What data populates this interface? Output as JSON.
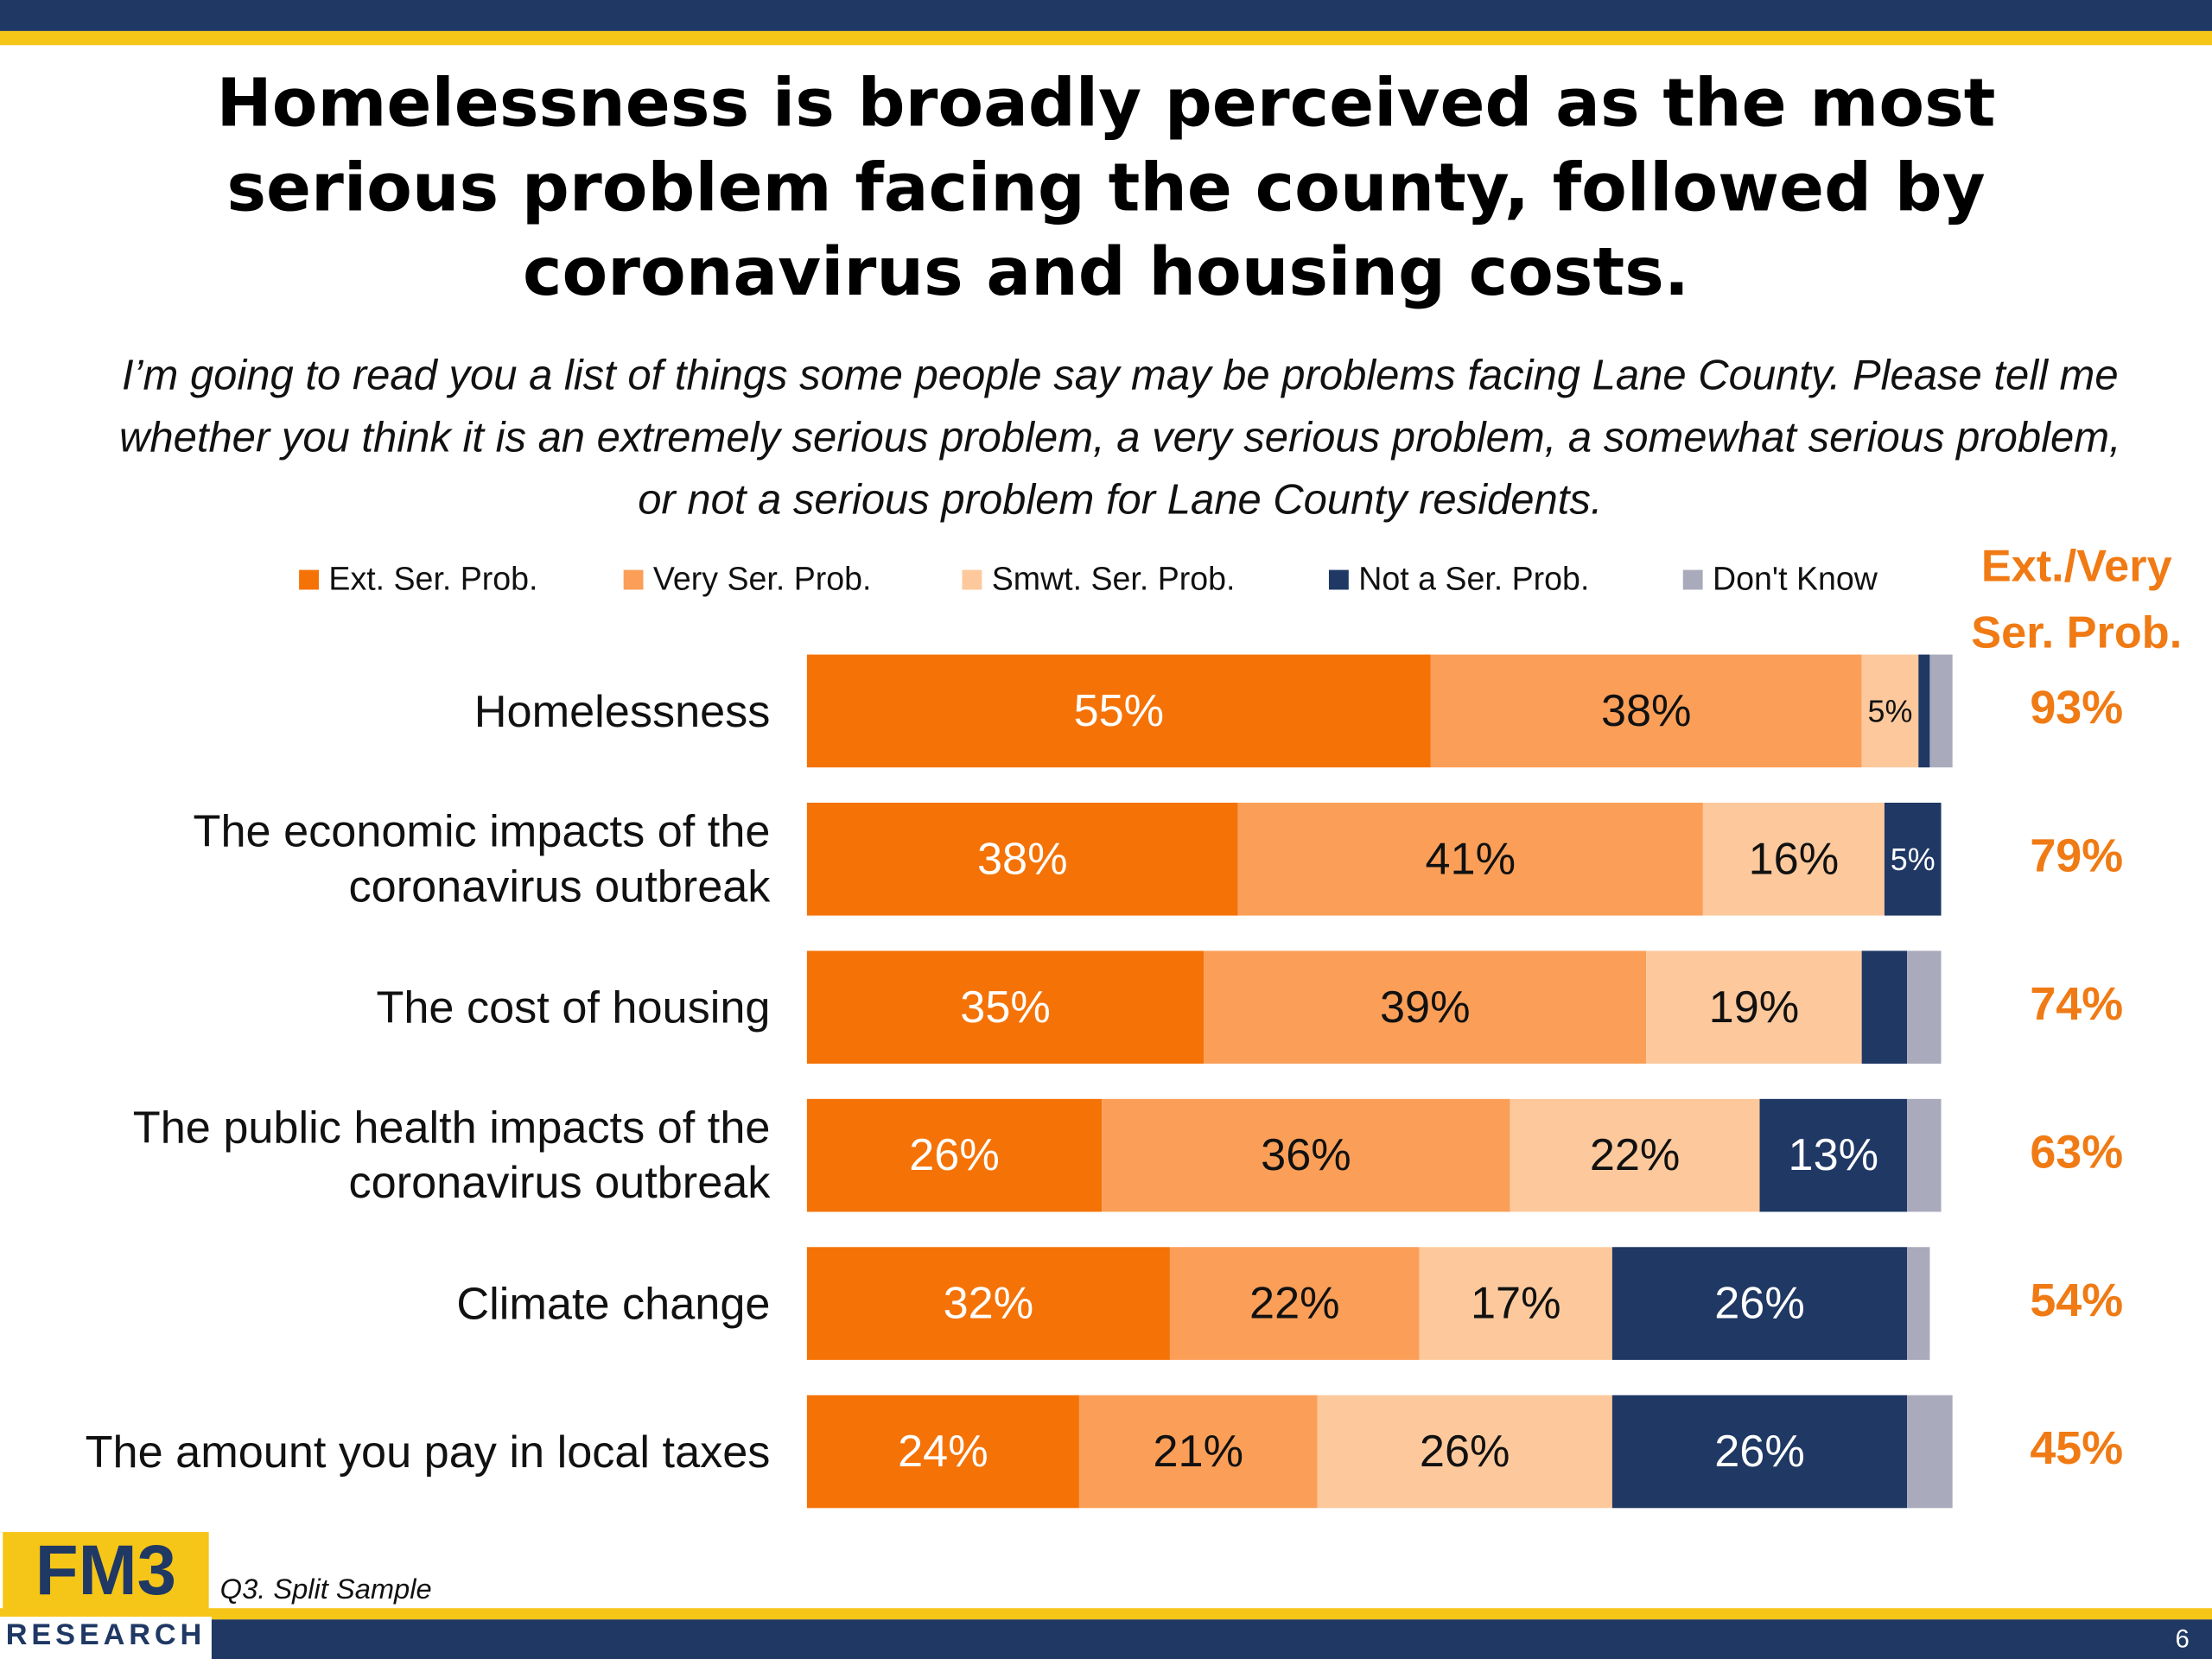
{
  "chart_data": {
    "type": "stacked-bar",
    "title": "Homelessness is broadly perceived as the most serious problem facing the county, followed by coronavirus and housing costs.",
    "subtitle": "I’m going to read you a list of things some people say may be problems facing Lane County. Please tell me whether you think it is an extremely serious problem, a very serious problem, a somewhat serious problem, or not a serious problem for Lane County residents.",
    "categories": [
      "Homelessness",
      "The economic impacts of the coronavirus outbreak",
      "The cost of housing",
      "The public health impacts of the coronavirus outbreak",
      "Climate change",
      "The amount you pay in local taxes"
    ],
    "xlim": [
      0,
      100
    ],
    "series": [
      {
        "name": "Ext. Ser. Prob.",
        "color": "#f57206",
        "values": [
          55,
          38,
          35,
          26,
          32,
          24
        ],
        "value_labels": [
          "55%",
          "38%",
          "35%",
          "26%",
          "32%",
          "24%"
        ]
      },
      {
        "name": "Very Ser. Prob.",
        "color": "#fb9f58",
        "values": [
          38,
          41,
          39,
          36,
          22,
          21
        ],
        "value_labels": [
          "38%",
          "41%",
          "39%",
          "36%",
          "22%",
          "21%"
        ]
      },
      {
        "name": "Smwt. Ser. Prob.",
        "color": "#fdc99c",
        "values": [
          5,
          16,
          19,
          22,
          17,
          26
        ],
        "value_labels": [
          "5%",
          "16%",
          "19%",
          "22%",
          "17%",
          "26%"
        ]
      },
      {
        "name": "Not a Ser. Prob.",
        "color": "#1f3864",
        "values": [
          1,
          5,
          4,
          13,
          26,
          26
        ],
        "value_labels": [
          null,
          "5%",
          null,
          "13%",
          "26%",
          "26%"
        ]
      },
      {
        "name": "Don't Know",
        "color": "#a9aabb",
        "values": [
          2,
          0,
          3,
          3,
          2,
          4
        ],
        "value_labels": [
          null,
          null,
          null,
          null,
          null,
          null
        ]
      }
    ],
    "net_title": "Ext./Very Ser. Prob.",
    "net_labels": [
      "93%",
      "79%",
      "74%",
      "63%",
      "54%",
      "45%"
    ],
    "note": "Q3. Split Sample",
    "logo": "FM3",
    "logo_sub": "RESEARCH",
    "page_number": "6"
  }
}
